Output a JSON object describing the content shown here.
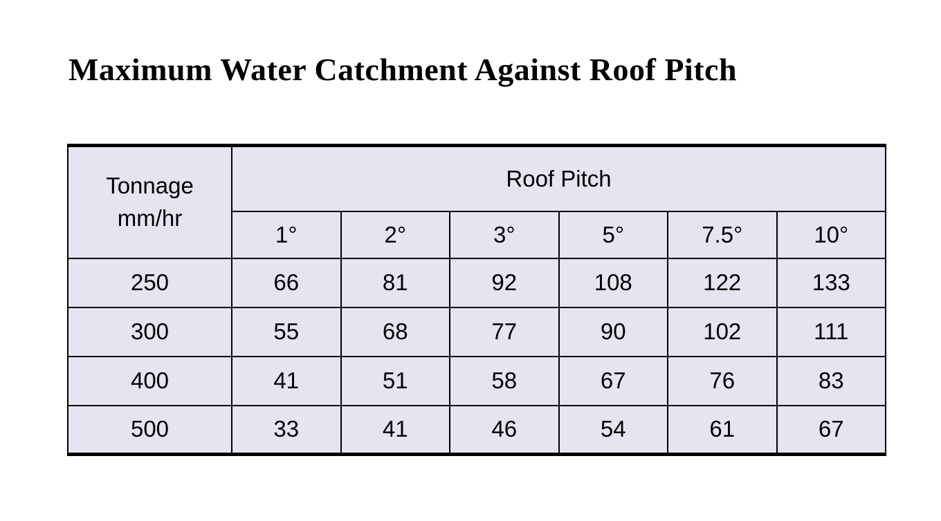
{
  "title": "Maximum Water Catchment Against Roof Pitch",
  "chart_data": {
    "type": "table",
    "title": "Maximum Water Catchment Against Roof Pitch",
    "corner": {
      "line1": "Tonnage",
      "line2": "mm/hr"
    },
    "column_group_label": "Roof Pitch",
    "columns": [
      "1°",
      "2°",
      "3°",
      "5°",
      "7.5°",
      "10°"
    ],
    "rows": [
      {
        "tonnage": "250",
        "values": [
          "66",
          "81",
          "92",
          "108",
          "122",
          "133"
        ]
      },
      {
        "tonnage": "300",
        "values": [
          "55",
          "68",
          "77",
          "90",
          "102",
          "111"
        ]
      },
      {
        "tonnage": "400",
        "values": [
          "41",
          "51",
          "58",
          "67",
          "76",
          "83"
        ]
      },
      {
        "tonnage": "500",
        "values": [
          "33",
          "41",
          "46",
          "54",
          "61",
          "67"
        ]
      }
    ],
    "layout": {
      "grid": "full-bordered-inner",
      "outer_vertical_borders": false,
      "thick_horizontal_rules": "top-and-bottom"
    }
  },
  "colors": {
    "cell_background": "#e6e4f0",
    "border": "#000000",
    "text": "#000000",
    "page_background": "#ffffff"
  }
}
